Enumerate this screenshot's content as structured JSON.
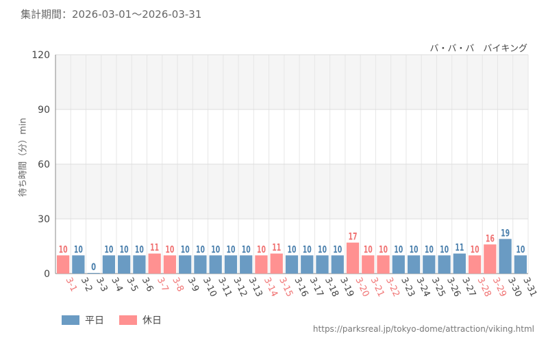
{
  "header": {
    "period_label": "集計期間：",
    "period_value": "2026-03-01～2026-03-31",
    "attraction_name": "バ・バ・バ　バイキング"
  },
  "legend": {
    "weekday_label": "平日",
    "holiday_label": "休日"
  },
  "footer": {
    "url": "https://parksreal.jp/tokyo-dome/attraction/viking.html"
  },
  "colors": {
    "weekday": "#6a9bc3",
    "holiday": "#ff9191",
    "weekday_text": "#4a7fac",
    "holiday_text": "#f07272"
  },
  "chart_data": {
    "type": "bar",
    "ylabel": "待ち時間（分）min",
    "ylim": [
      0,
      120
    ],
    "yticks": [
      0,
      30,
      60,
      90,
      120
    ],
    "grid": true,
    "legend_position": "bottom-left",
    "categories": [
      "3-1",
      "3-2",
      "3-3",
      "3-4",
      "3-5",
      "3-6",
      "3-7",
      "3-8",
      "3-9",
      "3-10",
      "3-11",
      "3-12",
      "3-13",
      "3-14",
      "3-15",
      "3-16",
      "3-17",
      "3-18",
      "3-19",
      "3-20",
      "3-21",
      "3-22",
      "3-23",
      "3-24",
      "3-25",
      "3-26",
      "3-27",
      "3-28",
      "3-29",
      "3-30",
      "3-31"
    ],
    "values": [
      10,
      10,
      0,
      10,
      10,
      10,
      11,
      10,
      10,
      10,
      10,
      10,
      10,
      10,
      11,
      10,
      10,
      10,
      10,
      17,
      10,
      10,
      10,
      10,
      10,
      10,
      11,
      10,
      16,
      19,
      10
    ],
    "day_type": [
      "休日",
      "平日",
      "平日",
      "平日",
      "平日",
      "平日",
      "休日",
      "休日",
      "平日",
      "平日",
      "平日",
      "平日",
      "平日",
      "休日",
      "休日",
      "平日",
      "平日",
      "平日",
      "平日",
      "休日",
      "休日",
      "休日",
      "平日",
      "平日",
      "平日",
      "平日",
      "平日",
      "休日",
      "休日",
      "平日",
      "平日"
    ]
  }
}
